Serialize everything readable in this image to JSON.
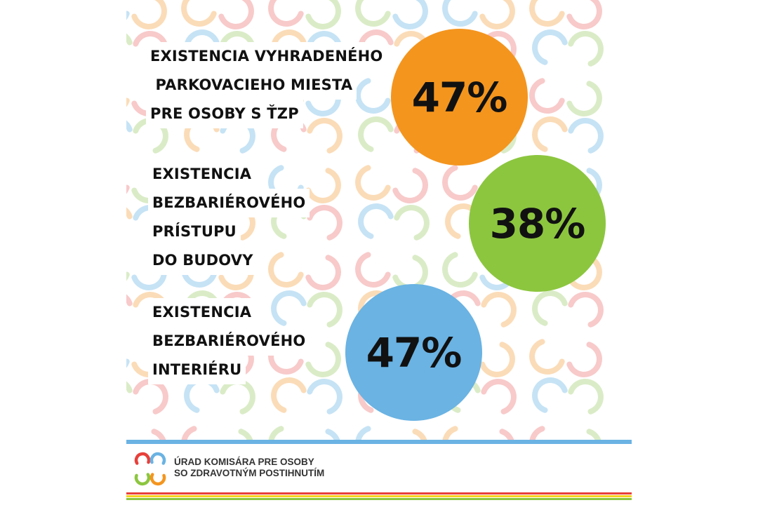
{
  "colors": {
    "orange": "#f4951e",
    "green": "#8cc63f",
    "blue": "#6ab3e3",
    "red": "#e8403a",
    "yellow": "#f7d21e",
    "pattern": [
      "#f6b8b8",
      "#cde6b4",
      "#b3d9f2",
      "#f9d0a0"
    ]
  },
  "stats": [
    {
      "label_lines": [
        "EXISTENCIA VYHRADENÉHO",
        " PARKOVACIEHO MIESTA",
        "PRE OSOBY S ŤZP"
      ],
      "value": "47%",
      "color_key": "orange"
    },
    {
      "label_lines": [
        "EXISTENCIA",
        "BEZBARIÉROVÉHO",
        "PRÍSTUPU",
        "DO BUDOVY"
      ],
      "value": "38%",
      "color_key": "green"
    },
    {
      "label_lines": [
        "EXISTENCIA",
        "BEZBARIÉROVÉHO",
        "INTERIÉRU"
      ],
      "value": "47%",
      "color_key": "blue"
    }
  ],
  "footer": {
    "logo_icon": "office-logo-icon",
    "name_line1": "ÚRAD KOMISÁRA PRE OSOBY",
    "name_line2": "SO ZDRAVOTNÝM POSTIHNUTÍM"
  }
}
